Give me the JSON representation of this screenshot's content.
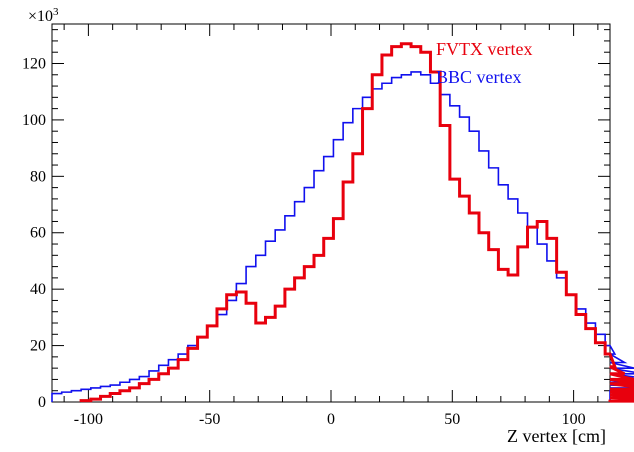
{
  "chart_data": {
    "type": "step-histogram",
    "title": "",
    "xlabel": "Z vertex  [cm]",
    "ylabel": "",
    "y_multiplier_label": "×10",
    "y_multiplier_exponent": "3",
    "xlim": [
      -115,
      115
    ],
    "ylim": [
      0,
      134
    ],
    "bin_width": 4,
    "x_ticks": [
      -100,
      -50,
      0,
      50,
      100
    ],
    "x_tick_labels": [
      "-100",
      "-50",
      "0",
      "50",
      "100"
    ],
    "y_ticks": [
      0,
      20,
      40,
      60,
      80,
      100,
      120
    ],
    "y_tick_labels": [
      "0",
      "20",
      "40",
      "60",
      "80",
      "100",
      "120"
    ],
    "grid": false,
    "legend_position": "top-right",
    "series": [
      {
        "name": "FVTX vertex",
        "color": "#e8000d",
        "x_start": -103,
        "values": [
          0.5,
          1,
          2,
          3,
          4,
          5,
          6.5,
          8,
          10,
          12,
          15,
          19,
          23,
          27,
          33,
          38,
          39,
          35,
          28,
          30,
          34,
          40,
          44,
          48,
          52,
          58,
          65,
          78,
          88,
          104,
          116,
          123,
          126,
          127,
          126,
          124,
          117,
          98,
          79,
          73,
          67,
          60,
          54,
          47,
          45,
          55,
          62,
          64,
          58,
          46,
          38,
          31,
          26,
          21,
          17,
          12.5,
          10,
          8,
          6.5,
          4.5,
          3.5,
          2.5,
          1.5,
          0.3
        ]
      },
      {
        "name": "BBC vertex",
        "color": "#1010ee",
        "x_start": -115,
        "values": [
          3,
          3.5,
          4,
          4.5,
          5,
          5.5,
          6,
          7,
          8,
          9,
          11,
          13,
          15,
          17,
          20,
          23,
          27,
          31,
          36,
          42,
          48,
          52,
          57,
          61,
          66,
          71,
          76,
          82,
          87,
          93,
          99,
          104,
          108,
          111,
          113,
          115,
          116,
          117,
          116,
          113,
          109,
          105,
          101,
          96,
          89,
          83,
          77,
          72,
          67,
          62,
          56,
          50,
          44,
          38,
          33,
          28,
          24,
          20,
          17,
          14,
          12,
          10,
          8,
          7,
          6,
          5,
          4.5,
          4
        ]
      }
    ]
  }
}
